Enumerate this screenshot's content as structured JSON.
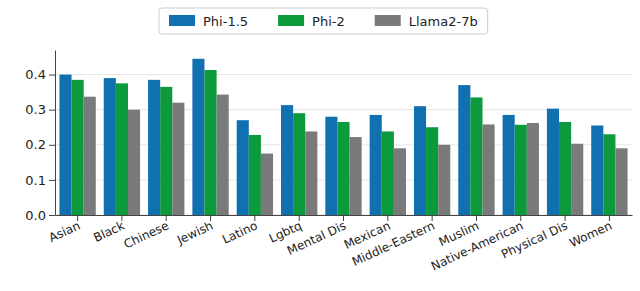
{
  "chart_data": {
    "type": "bar",
    "categories": [
      "Asian",
      "Black",
      "Chinese",
      "Jewish",
      "Latino",
      "Lgbtq",
      "Mental Dis",
      "Mexican",
      "Middle-Eastern",
      "Muslim",
      "Native-American",
      "Physical Dis",
      "Women"
    ],
    "series": [
      {
        "name": "Phi-1.5",
        "color": "#1170b0",
        "values": [
          0.4,
          0.39,
          0.385,
          0.445,
          0.27,
          0.313,
          0.28,
          0.285,
          0.31,
          0.37,
          0.285,
          0.303,
          0.255
        ]
      },
      {
        "name": "Phi-2",
        "color": "#0c9a3c",
        "values": [
          0.385,
          0.375,
          0.365,
          0.413,
          0.228,
          0.29,
          0.265,
          0.238,
          0.25,
          0.335,
          0.257,
          0.265,
          0.23
        ]
      },
      {
        "name": "Llama2-7b",
        "color": "#7a7a7a",
        "values": [
          0.337,
          0.3,
          0.32,
          0.343,
          0.175,
          0.238,
          0.222,
          0.19,
          0.2,
          0.258,
          0.262,
          0.203,
          0.19
        ]
      }
    ],
    "ylim": [
      0,
      0.47
    ],
    "yticks": [
      {
        "value": 0,
        "label": "0.0"
      },
      0.1,
      0.2,
      0.3,
      0.4
    ],
    "grid": true,
    "legend": "top"
  }
}
